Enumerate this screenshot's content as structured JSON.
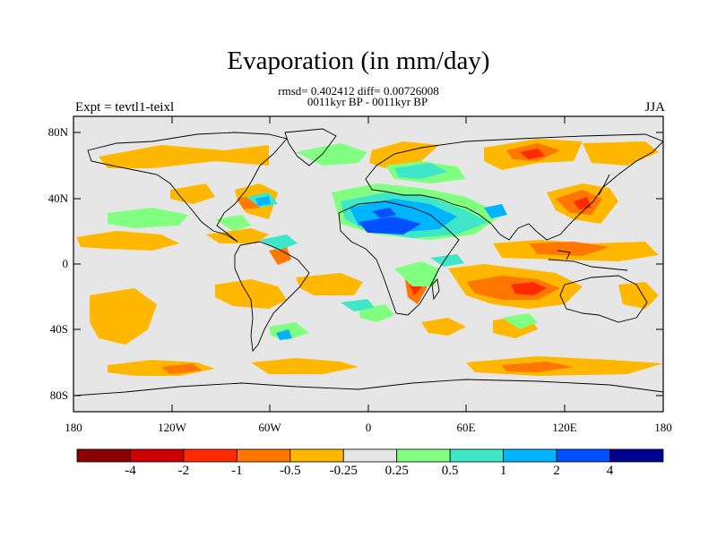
{
  "figure": {
    "title": "Evaporation (in mm/day)",
    "stats_line": "rmsd= 0.402412 diff= 0.00726008",
    "period_line": "0011kyr BP - 0011kyr BP",
    "experiment_label": "Expt = tevtl1-teixl",
    "season": "JJA"
  },
  "map": {
    "lat_ticks": [
      "80N",
      "40N",
      "0",
      "40S",
      "80S"
    ],
    "lon_ticks": [
      "180",
      "120W",
      "60W",
      "0",
      "60E",
      "120E",
      "180"
    ],
    "background_color": "#e6e6e6"
  },
  "colorbar": {
    "colors": [
      "#8b0000",
      "#cc0000",
      "#ff2a00",
      "#ff7700",
      "#ffb700",
      "#e6e6e6",
      "#80ff80",
      "#40e6c8",
      "#00b4ff",
      "#0050ff",
      "#000090"
    ],
    "labels": [
      "-4",
      "-2",
      "-1",
      "-0.5",
      "-0.25",
      "0.25",
      "0.5",
      "1",
      "2",
      "4"
    ]
  }
}
